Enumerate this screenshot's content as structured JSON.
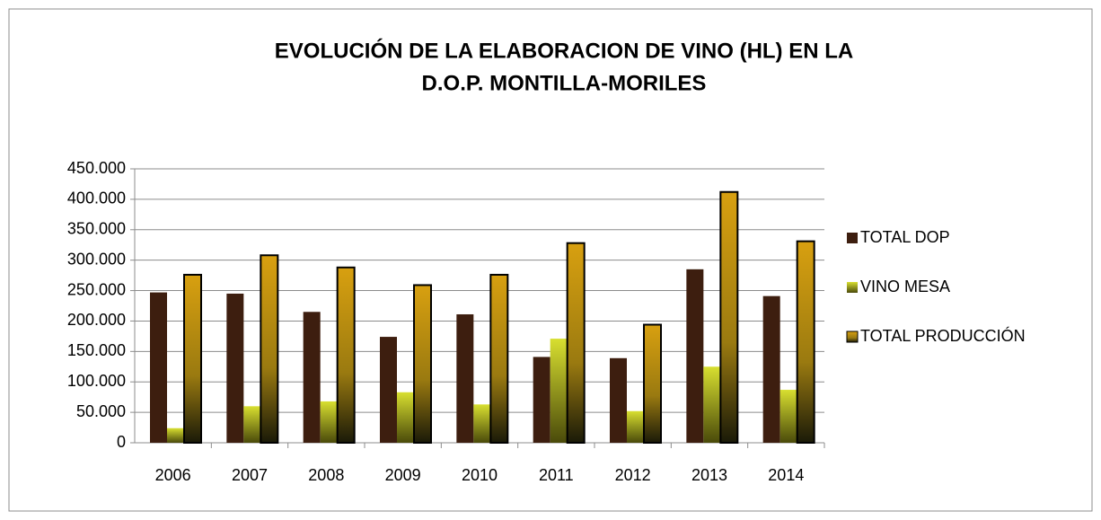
{
  "chart_data": {
    "type": "bar",
    "title": [
      "EVOLUCIÓN DE LA ELABORACION DE VINO (HL)  EN LA",
      "D.O.P. MONTILLA-MORILES"
    ],
    "categories": [
      "2006",
      "2007",
      "2008",
      "2009",
      "2010",
      "2011",
      "2012",
      "2013",
      "2014"
    ],
    "series": [
      {
        "name": "TOTAL DOP",
        "color": "#3d1e0f",
        "values": [
          247000,
          245000,
          215000,
          174000,
          211000,
          141000,
          139000,
          285000,
          241000
        ]
      },
      {
        "name": "VINO MESA",
        "color": "#9c9a1e",
        "values": [
          24000,
          60000,
          68000,
          83000,
          63000,
          171000,
          52000,
          125000,
          87000
        ]
      },
      {
        "name": "TOTAL PRODUCCIÓN",
        "color": "#c8980e",
        "values": [
          276000,
          308000,
          288000,
          259000,
          276000,
          328000,
          194000,
          412000,
          331000
        ]
      }
    ],
    "ylim": [
      0,
      450000
    ],
    "yticks": [
      0,
      {
        "value": 50000,
        "label": "50.000"
      },
      {
        "value": 100000,
        "label": "100.000"
      },
      {
        "value": 150000,
        "label": "150.000"
      },
      {
        "value": 200000,
        "label": "200.000"
      },
      {
        "value": 250000,
        "label": "250.000"
      },
      {
        "value": 300000,
        "label": "300.000"
      },
      {
        "value": 350000,
        "label": "350.000"
      },
      {
        "value": 400000,
        "label": "400.000"
      },
      {
        "value": 450000,
        "label": "450.000"
      }
    ],
    "grid": true,
    "legend": "right"
  }
}
